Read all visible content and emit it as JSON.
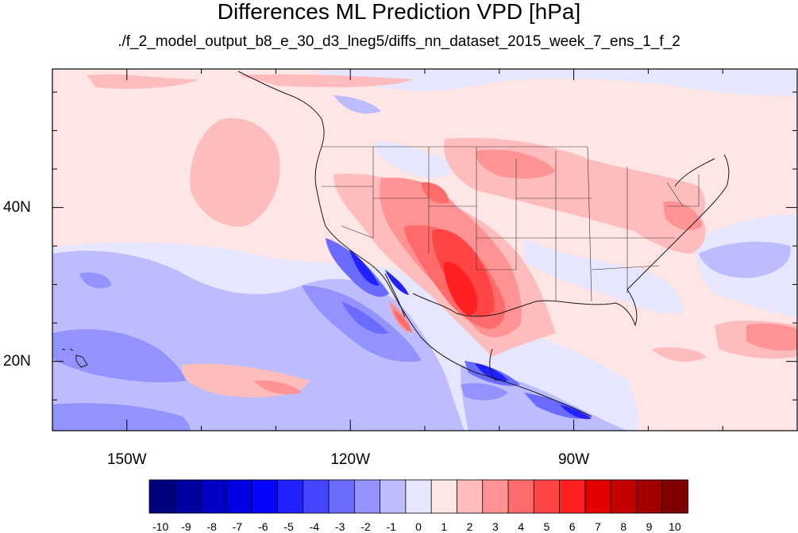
{
  "title": "Differences ML Prediction VPD [hPa]",
  "subtitle": "./f_2_model_output_b8_e_30_d3_lneg5/diffs_nn_dataset_2015_week_7_ens_1_f_2",
  "map": {
    "lon_range": [
      -160,
      -60
    ],
    "lat_range": [
      11,
      58
    ],
    "lat_ticks": [
      {
        "value": 20,
        "label": "20N"
      },
      {
        "value": 40,
        "label": "40N"
      }
    ],
    "lon_ticks": [
      {
        "value": -150,
        "label": "150W"
      },
      {
        "value": -120,
        "label": "120W"
      },
      {
        "value": -90,
        "label": "90W"
      }
    ],
    "background_value": 0.3
  },
  "colorbar": {
    "labels": [
      "-10",
      "-9",
      "-8",
      "-7",
      "-6",
      "-5",
      "-4",
      "-3",
      "-2",
      "-1",
      "0",
      "1",
      "2",
      "3",
      "4",
      "5",
      "6",
      "7",
      "8",
      "9",
      "10"
    ],
    "colors": [
      "#00007f",
      "#0000a0",
      "#0000c2",
      "#0000e3",
      "#0404ff",
      "#2121ff",
      "#4545ff",
      "#6b6bff",
      "#9393ff",
      "#bcbcff",
      "#e6e6ff",
      "#ffe6e6",
      "#ffbcbc",
      "#ff9393",
      "#ff6b6b",
      "#ff4545",
      "#ff2121",
      "#e30000",
      "#c20000",
      "#a00000",
      "#7f0000"
    ]
  }
}
